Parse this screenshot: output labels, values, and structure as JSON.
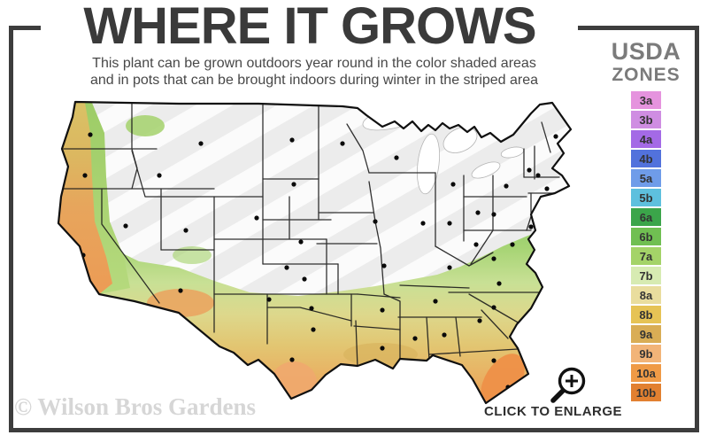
{
  "header": {
    "title": "WHERE IT GROWS",
    "subtitle_line1": "This plant can be grown outdoors year round in the color shaded areas",
    "subtitle_line2": "and in pots that can be brought indoors during winter in the striped area"
  },
  "legend": {
    "title_line1": "USDA",
    "title_line2": "ZONES",
    "zones": [
      {
        "label": "3a",
        "color": "#e593de"
      },
      {
        "label": "3b",
        "color": "#cf8de2"
      },
      {
        "label": "4a",
        "color": "#a46ae6"
      },
      {
        "label": "4b",
        "color": "#5272dc"
      },
      {
        "label": "5a",
        "color": "#6f9ce9"
      },
      {
        "label": "5b",
        "color": "#5ec0de"
      },
      {
        "label": "6a",
        "color": "#3ba54a"
      },
      {
        "label": "6b",
        "color": "#70bf52"
      },
      {
        "label": "7a",
        "color": "#a4d368"
      },
      {
        "label": "7b",
        "color": "#d7ebb2"
      },
      {
        "label": "8a",
        "color": "#e9dd9e"
      },
      {
        "label": "8b",
        "color": "#e6c355"
      },
      {
        "label": "9a",
        "color": "#d9ad55"
      },
      {
        "label": "9b",
        "color": "#f2b478"
      },
      {
        "label": "10a",
        "color": "#ef9a46"
      },
      {
        "label": "10b",
        "color": "#e28030"
      }
    ]
  },
  "map": {
    "colors": {
      "striped_area_base": "#ececec",
      "stripe_overlay": "#ffffff",
      "state_border": "#1b1b1b",
      "city_dot": "#0a0a0a",
      "green_band": "#9ed06c",
      "gold_band": "#e2c672",
      "orange_band": "#ec9c53"
    }
  },
  "footer": {
    "watermark": "© Wilson Bros Gardens",
    "enlarge_label": "CLICK TO ENLARGE",
    "enlarge_icon": "magnifier-zoom-in-icon"
  },
  "frame": {
    "color": "#3d3d3d"
  }
}
